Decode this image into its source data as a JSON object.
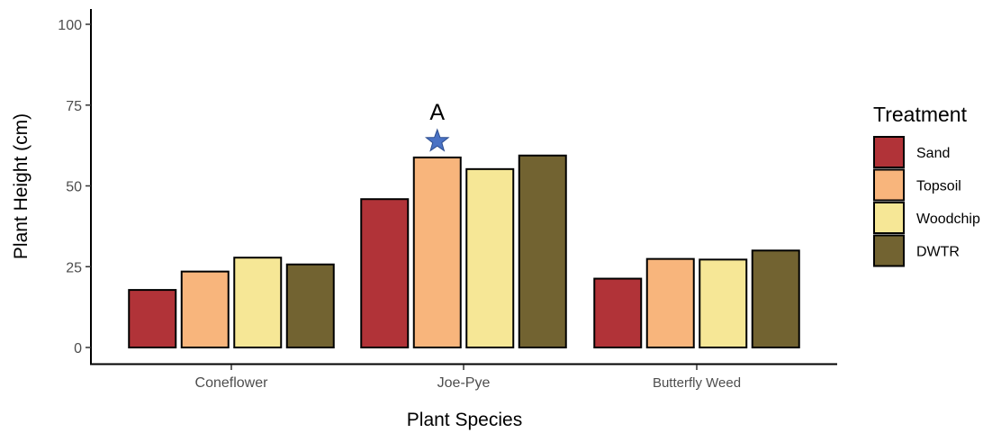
{
  "chart_data": {
    "type": "bar",
    "categories": [
      "Coneflower",
      "Joe-Pye",
      "Butterfly Weed"
    ],
    "series": [
      {
        "name": "Sand",
        "values": [
          17.8,
          45.9,
          21.3
        ],
        "color": "#b13338"
      },
      {
        "name": "Topsoil",
        "values": [
          23.5,
          58.8,
          27.4
        ],
        "color": "#f8b57c"
      },
      {
        "name": "Woodchip",
        "values": [
          27.8,
          55.2,
          27.2
        ],
        "color": "#f6e796"
      },
      {
        "name": "DWTR",
        "values": [
          25.7,
          59.4,
          30.0
        ],
        "color": "#726331"
      }
    ],
    "xlabel": "Plant Species",
    "ylabel": "Plant Height (cm)",
    "ylim": [
      0,
      100
    ],
    "yticks": [
      0,
      25,
      50,
      75,
      100
    ],
    "grid": false,
    "legend": {
      "title": "Treatment",
      "placement": "right"
    },
    "annotations": [
      {
        "category": "Joe-Pye",
        "series": "Topsoil",
        "marker": "star",
        "marker_color": "#4a72c4",
        "text": "A"
      }
    ]
  }
}
